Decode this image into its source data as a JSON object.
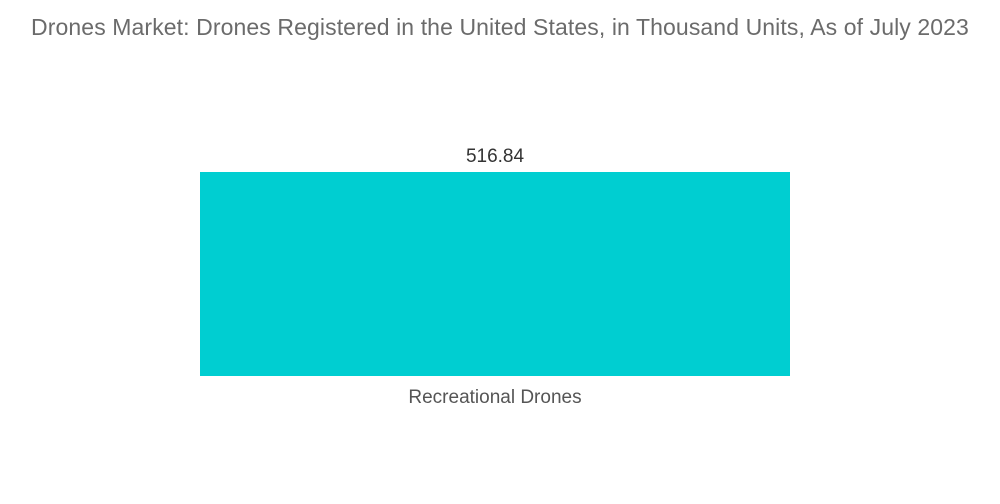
{
  "chart_data": {
    "type": "bar",
    "title": "Drones Market: Drones Registered in the United States, in Thousand Units, As of July 2023",
    "categories": [
      "Recreational Drones"
    ],
    "values": [
      516.84
    ],
    "value_labels": [
      "516.84"
    ],
    "bar_color": "#00ced1",
    "ylim": [
      0,
      516.84
    ],
    "grid": false,
    "legend": "none"
  }
}
